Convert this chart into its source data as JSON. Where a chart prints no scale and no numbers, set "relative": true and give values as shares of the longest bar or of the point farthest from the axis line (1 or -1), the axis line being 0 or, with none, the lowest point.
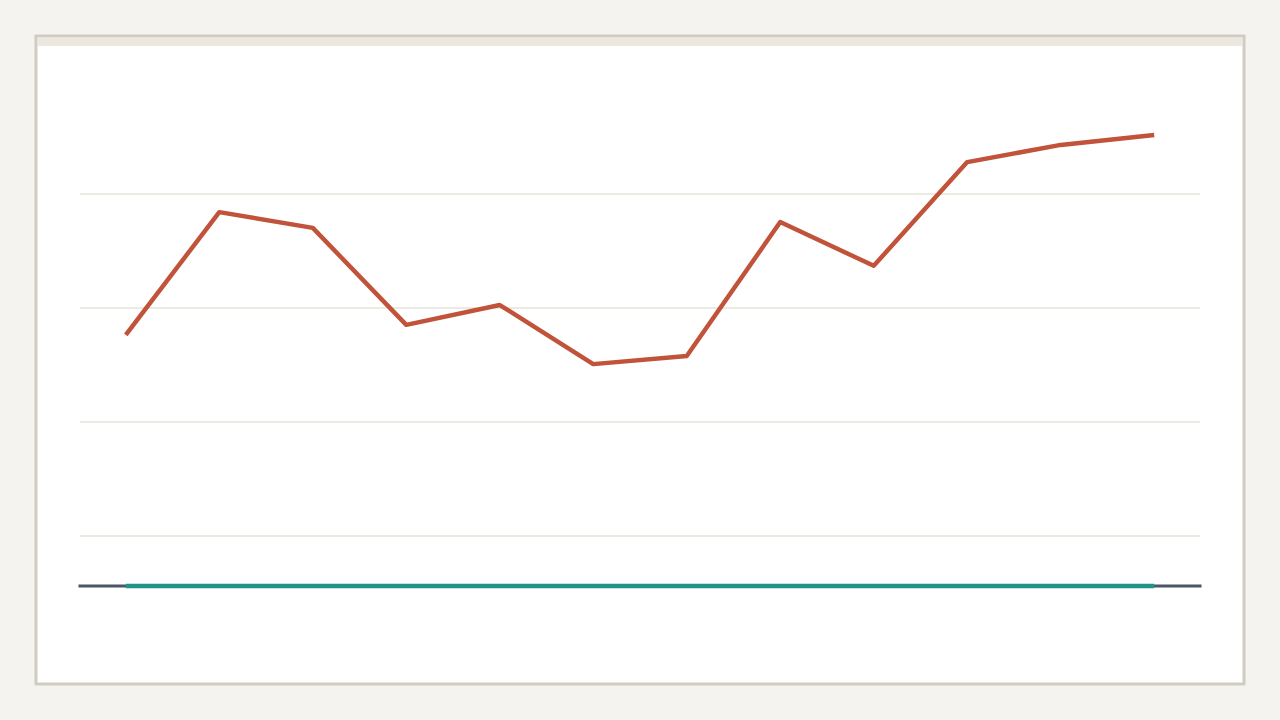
{
  "chart_data": {
    "type": "line",
    "relative": true,
    "grid": "y",
    "line_style": "solid",
    "categories": [
      null,
      null,
      null,
      null,
      null,
      null,
      null,
      null,
      null,
      null,
      null,
      null
    ],
    "series": [
      {
        "color": "#c0533a",
        "values": [
          0.557,
          0.829,
          0.794,
          0.579,
          0.623,
          0.492,
          0.51,
          0.807,
          0.71,
          0.94,
          0.978,
          1.0
        ]
      },
      {
        "color": "#21948a",
        "values": [
          0,
          0,
          0,
          0,
          0,
          0,
          0,
          0,
          0,
          0,
          0,
          0
        ]
      }
    ]
  }
}
